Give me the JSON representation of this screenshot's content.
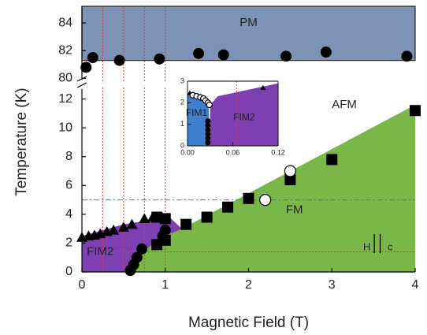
{
  "chart_data": [
    {
      "type": "scatter",
      "x_label": "Magnetic Field (T)",
      "y_label": "Temperature (K)",
      "xlim": [
        0,
        4
      ],
      "xticks": [
        0,
        1,
        2,
        3,
        4
      ],
      "vlines": {
        "values": [
          0.25,
          0.5,
          0.75,
          1
        ],
        "color": "#e53935"
      },
      "panels": [
        {
          "ylim": [
            79.8,
            85.2
          ],
          "yticks": [
            80,
            82,
            84
          ],
          "regions": [
            {
              "label": "PM",
              "color": "#7d93b5",
              "outline": true,
              "x": [
                0,
                4,
                4,
                0
              ],
              "y": [
                81.3,
                81.3,
                85.2,
                85.2
              ]
            }
          ],
          "series": [
            {
              "marker": "circle",
              "x": [
                0.05,
                0.13,
                0.45,
                0.93,
                1.4,
                1.7,
                2.45,
                2.93,
                3.9
              ],
              "y": [
                80.8,
                81.5,
                81.3,
                81.4,
                81.8,
                81.7,
                81.6,
                81.9,
                81.6
              ]
            }
          ],
          "annotations": []
        },
        {
          "ylim": [
            0,
            12.8
          ],
          "yticks": [
            0,
            2,
            4,
            6,
            8,
            10,
            12
          ],
          "regions": [
            {
              "label": "FM",
              "color": "#7ab648",
              "x": [
                0.55,
                4,
                4,
                1.2,
                0.9,
                0.7
              ],
              "y": [
                0,
                0,
                11.6,
                3.0,
                2.2,
                1.2
              ]
            },
            {
              "label": "FIM2",
              "color": "#7e3fb2",
              "x": [
                0,
                0.55,
                0.7,
                0.9,
                1.2,
                1.05,
                0.5,
                0
              ],
              "y": [
                0,
                0,
                1.2,
                2.2,
                3.0,
                3.8,
                3.3,
                2.5
              ]
            }
          ],
          "hlines": [
            {
              "value": 1.4,
              "color": "#e53935",
              "style": "dotted"
            },
            {
              "value": 5,
              "color": "#1e88e5",
              "style": "dash-dot"
            }
          ],
          "series": [
            {
              "marker": "triangle",
              "x": [
                0,
                0.08,
                0.15,
                0.22,
                0.3,
                0.38,
                0.5,
                0.6,
                0.75,
                0.85
              ],
              "y": [
                2.4,
                2.5,
                2.55,
                2.65,
                2.8,
                2.9,
                3.1,
                3.3,
                3.7,
                3.8
              ]
            },
            {
              "marker": "square",
              "x": [
                0.9,
                1.0,
                0.9,
                1.0,
                1.25,
                1.5,
                1.75,
                2.0,
                2.5,
                3.0,
                4.0
              ],
              "y": [
                3.8,
                3.7,
                1.9,
                2.2,
                3.3,
                3.8,
                4.5,
                5.1,
                6.4,
                7.8,
                11.2
              ]
            },
            {
              "marker": "circle",
              "x": [
                0.58,
                0.62,
                0.66,
                0.72,
                0.97,
                1.0
              ],
              "y": [
                0.1,
                0.5,
                1.0,
                1.6,
                2.5,
                2.9
              ]
            },
            {
              "marker": "open-circle",
              "x": [
                2.2,
                2.5
              ],
              "y": [
                5.0,
                7.0
              ]
            }
          ],
          "annotations": [
            "AFM",
            "H",
            "c"
          ]
        }
      ]
    },
    {
      "type": "scatter",
      "xlim": [
        0,
        0.12
      ],
      "xticks": [
        {
          "value": 0,
          "label": "0.00"
        },
        0.06,
        0.12
      ],
      "vlines": {
        "values": [
          0.065
        ],
        "color": "#e53935"
      },
      "ylim": [
        0,
        3
      ],
      "yticks": [
        0,
        1,
        2,
        3
      ],
      "regions": [
        {
          "label": "FIM1",
          "color": "#3f7fd0",
          "x": [
            0,
            0.03,
            0.028,
            0.02,
            0.01,
            0
          ],
          "y": [
            0,
            0,
            1.9,
            2.2,
            2.35,
            2.4
          ]
        },
        {
          "label": "FIM2",
          "color": "#7e3fb2",
          "x": [
            0.03,
            0.12,
            0.12,
            0.04,
            0.03
          ],
          "y": [
            0,
            0,
            2.9,
            2.3,
            1.9
          ]
        }
      ],
      "series": [
        {
          "marker": "triangle",
          "x": [
            0.003,
            0.1
          ],
          "y": [
            2.45,
            2.7
          ]
        },
        {
          "marker": "open-circle",
          "x": [
            0.007,
            0.012,
            0.017,
            0.021,
            0.024,
            0.027,
            0.029
          ],
          "y": [
            2.35,
            2.3,
            2.25,
            2.2,
            2.1,
            2.0,
            1.9
          ]
        },
        {
          "marker": "circle",
          "x": [
            0.027,
            0.027,
            0.027,
            0.027,
            0.027,
            0.027
          ],
          "y": [
            0.15,
            0.35,
            0.55,
            0.75,
            0.95,
            1.15
          ]
        }
      ],
      "annotations": []
    }
  ]
}
